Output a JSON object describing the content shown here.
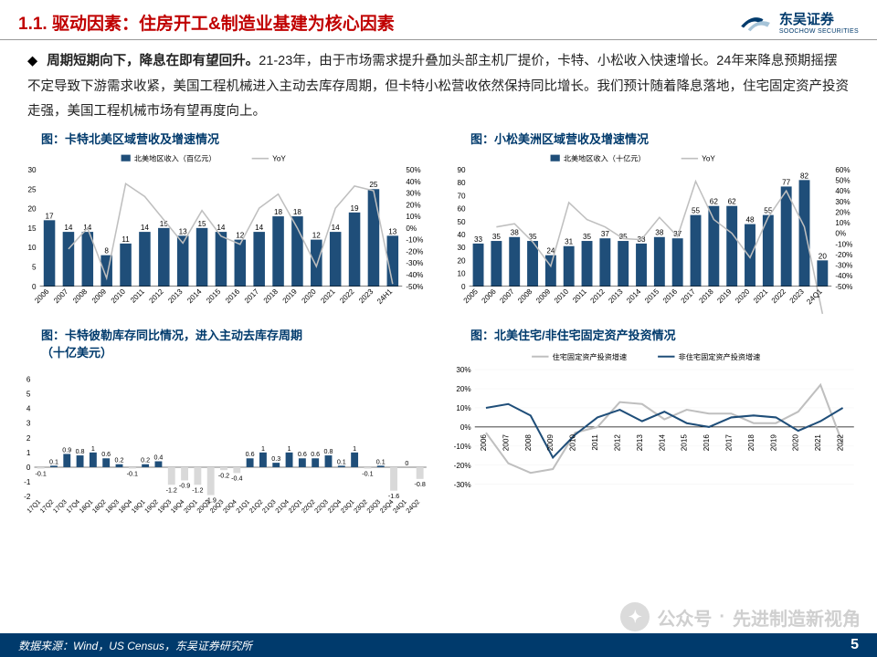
{
  "header": {
    "title": "1.1. 驱动因素：住房开工&制造业基建为核心因素",
    "logo_cn": "东吴证券",
    "logo_en": "SOOCHOW SECURITIES"
  },
  "body": {
    "bold_lead": "周期短期向下，降息在即有望回升。",
    "text": "21-23年，由于市场需求提升叠加头部主机厂提价，卡特、小松收入快速增长。24年来降息预期摇摆不定导致下游需求收紧，美国工程机械进入主动去库存周期，但卡特小松营收依然保持同比增长。我们预计随着降息落地，住宅固定资产投资走强，美国工程机械市场有望再度向上。"
  },
  "chart1": {
    "title": "图：卡特北美区域营收及增速情况",
    "legend_bar": "北美地区收入（百亿元）",
    "legend_line": "YoY",
    "categories": [
      "2006",
      "2007",
      "2008",
      "2009",
      "2010",
      "2011",
      "2012",
      "2013",
      "2014",
      "2015",
      "2016",
      "2017",
      "2018",
      "2019",
      "2020",
      "2021",
      "2022",
      "2023",
      "24H1"
    ],
    "bar_values": [
      17,
      14,
      14,
      8,
      11,
      14,
      15,
      13,
      15,
      14,
      12,
      14,
      18,
      18,
      12,
      14,
      19,
      25,
      13
    ],
    "line_values": [
      null,
      -18,
      0,
      -43,
      38,
      27,
      7,
      -13,
      15,
      -7,
      -14,
      17,
      29,
      0,
      -33,
      17,
      36,
      32,
      -48
    ],
    "y1_min": 0,
    "y1_max": 30,
    "y1_step": 5,
    "y2_min": -50,
    "y2_max": 50,
    "y2_step": 10,
    "bar_color": "#1f4e79",
    "line_color": "#bfbfbf",
    "label_fontsize": 8,
    "tick_fontsize": 8
  },
  "chart2": {
    "title": "图：小松美洲区域营收及增速情况",
    "legend_bar": "北美地区收入（十亿元）",
    "legend_line": "YoY",
    "categories": [
      "2005",
      "2006",
      "2007",
      "2008",
      "2009",
      "2010",
      "2011",
      "2012",
      "2013",
      "2014",
      "2015",
      "2016",
      "2017",
      "2018",
      "2019",
      "2020",
      "2021",
      "2022",
      "2023",
      "24Q1"
    ],
    "bar_values": [
      33,
      35,
      38,
      35,
      24,
      31,
      35,
      37,
      35,
      33,
      38,
      37,
      55,
      62,
      62,
      48,
      55,
      77,
      82,
      20
    ],
    "line_values": [
      null,
      6,
      9,
      -8,
      -31,
      29,
      13,
      6,
      -5,
      -6,
      15,
      -3,
      49,
      13,
      0,
      -23,
      15,
      40,
      6,
      -76
    ],
    "y1_min": 0,
    "y1_max": 90,
    "y1_step": 10,
    "y2_min": -50,
    "y2_max": 60,
    "y2_step": 10,
    "bar_color": "#1f4e79",
    "line_color": "#bfbfbf",
    "label_fontsize": 8,
    "tick_fontsize": 8
  },
  "chart3": {
    "title_line1": "图：卡特彼勒库存同比情况，进入主动去库存周期",
    "title_line2": "（十亿美元）",
    "categories": [
      "17Q1",
      "17Q2",
      "17Q3",
      "17Q4",
      "18Q1",
      "18Q2",
      "18Q3",
      "18Q4",
      "19Q1",
      "19Q2",
      "19Q3",
      "19Q4",
      "20Q1",
      "20Q2",
      "20Q3",
      "20Q4",
      "21Q1",
      "21Q2",
      "21Q3",
      "21Q4",
      "22Q1",
      "22Q2",
      "22Q3",
      "22Q4",
      "23Q1",
      "23Q2",
      "23Q3",
      "23Q4",
      "24Q1",
      "24Q2"
    ],
    "bar_values": [
      -0.1,
      0.1,
      0.9,
      0.8,
      1,
      0.6,
      0.2,
      -0.1,
      0.2,
      0.4,
      -1.2,
      -0.9,
      -1.2,
      -1.9,
      -0.2,
      -0.4,
      0.6,
      1,
      0.3,
      1,
      0.6,
      0.6,
      0.8,
      0.1,
      1,
      -0.1,
      0.1,
      -1.6,
      0,
      -0.8
    ],
    "y_min": -2,
    "y_max": 6,
    "y_step": 1,
    "bar_pos_color": "#1f4e79",
    "bar_neg_color": "#d9d9d9",
    "label_fontsize": 7,
    "tick_fontsize": 8
  },
  "chart4": {
    "title": "图：北美住宅/非住宅固定资产投资情况",
    "legend_a": "住宅固定资产投资增速",
    "legend_b": "非住宅固定资产投资增速",
    "categories": [
      "2006",
      "2007",
      "2008",
      "2009",
      "2010",
      "2011",
      "2012",
      "2013",
      "2014",
      "2015",
      "2016",
      "2017",
      "2018",
      "2019",
      "2020",
      "2021",
      "2022"
    ],
    "line_a": [
      -3,
      -19,
      -24,
      -22,
      -3,
      0,
      13,
      12,
      4,
      9,
      7,
      7,
      2,
      2,
      8,
      22,
      -9
    ],
    "line_b": [
      10,
      12,
      6,
      -16,
      -4,
      5,
      9,
      3,
      8,
      2,
      0,
      5,
      6,
      5,
      -2,
      3,
      10
    ],
    "y_min": -30,
    "y_max": 30,
    "y_step": 10,
    "color_a": "#bfbfbf",
    "color_b": "#1f4e79",
    "label_fontsize": 8,
    "tick_fontsize": 8
  },
  "footer": {
    "source": "数据来源：Wind，US Census，东吴证券研究所",
    "page": "5"
  },
  "watermark": {
    "label": "公众号",
    "name": "先进制造新视角"
  }
}
